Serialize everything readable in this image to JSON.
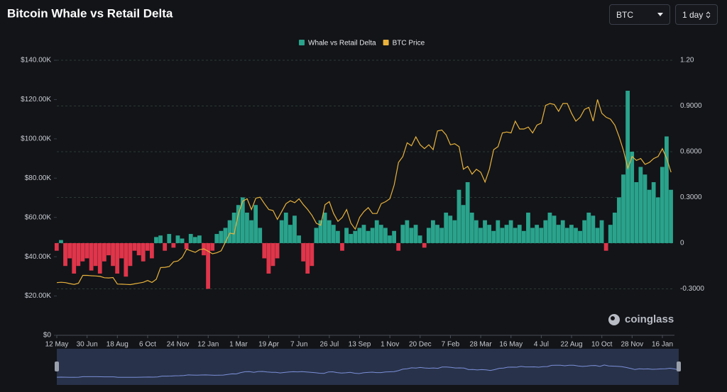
{
  "controls": {
    "symbol": "BTC",
    "interval": "1 day"
  },
  "watermark": "coinglass",
  "chart_data": {
    "type": "bar-line",
    "title": "Bitcoin Whale vs Retail Delta",
    "categories": [
      "12 May",
      null,
      null,
      null,
      null,
      null,
      null,
      "30 Jun",
      null,
      null,
      null,
      null,
      null,
      null,
      "18 Aug",
      null,
      null,
      null,
      null,
      null,
      null,
      "6 Oct",
      null,
      null,
      null,
      null,
      null,
      null,
      "24 Nov",
      null,
      null,
      null,
      null,
      null,
      null,
      "12 Jan",
      null,
      null,
      null,
      null,
      null,
      null,
      "1 Mar",
      null,
      null,
      null,
      null,
      null,
      null,
      "19 Apr",
      null,
      null,
      null,
      null,
      null,
      null,
      "7 Jun",
      null,
      null,
      null,
      null,
      null,
      null,
      "26 Jul",
      null,
      null,
      null,
      null,
      null,
      null,
      "13 Sep",
      null,
      null,
      null,
      null,
      null,
      null,
      "1 Nov",
      null,
      null,
      null,
      null,
      null,
      null,
      "20 Dec",
      null,
      null,
      null,
      null,
      null,
      null,
      "7 Feb",
      null,
      null,
      null,
      null,
      null,
      null,
      "28 Mar",
      null,
      null,
      null,
      null,
      null,
      null,
      "16 May",
      null,
      null,
      null,
      null,
      null,
      null,
      "4 Jul",
      null,
      null,
      null,
      null,
      null,
      null,
      "22 Aug",
      null,
      null,
      null,
      null,
      null,
      null,
      "10 Oct",
      null,
      null,
      null,
      null,
      null,
      null,
      "28 Nov",
      null,
      null,
      null,
      null,
      null,
      null,
      "16 Jan",
      null,
      null
    ],
    "series": [
      {
        "name": "Whale vs Retail Delta",
        "kind": "bar",
        "axis": "y2",
        "color": "#2aa38c",
        "negative_color": "#e0354a",
        "values": [
          -0.05,
          0.02,
          -0.15,
          -0.1,
          -0.2,
          -0.15,
          -0.12,
          -0.1,
          -0.18,
          -0.15,
          -0.2,
          -0.12,
          -0.08,
          -0.15,
          -0.2,
          -0.1,
          -0.22,
          -0.15,
          -0.05,
          -0.08,
          -0.12,
          -0.05,
          -0.1,
          0.04,
          0.05,
          -0.05,
          0.06,
          -0.03,
          0.05,
          0.03,
          -0.04,
          0.06,
          0.04,
          0.05,
          -0.08,
          -0.3,
          -0.05,
          0.06,
          0.08,
          0.1,
          0.15,
          0.2,
          0.25,
          0.3,
          0.2,
          0.15,
          0.25,
          0.1,
          -0.1,
          -0.2,
          -0.15,
          -0.1,
          0.15,
          0.2,
          0.12,
          0.18,
          0.05,
          -0.12,
          -0.2,
          -0.15,
          0.1,
          0.15,
          0.2,
          0.15,
          0.12,
          0.08,
          -0.05,
          0.1,
          0.06,
          0.08,
          0.1,
          0.12,
          0.08,
          0.1,
          0.15,
          0.12,
          0.1,
          0.05,
          0.08,
          -0.05,
          0.12,
          0.15,
          0.1,
          0.12,
          0.05,
          -0.03,
          0.1,
          0.15,
          0.12,
          0.1,
          0.2,
          0.18,
          0.15,
          0.35,
          0.25,
          0.4,
          0.2,
          0.15,
          0.1,
          0.15,
          0.12,
          0.08,
          0.15,
          0.1,
          0.12,
          0.15,
          0.1,
          0.12,
          0.08,
          0.2,
          0.1,
          0.12,
          0.1,
          0.15,
          0.2,
          0.18,
          0.12,
          0.15,
          0.1,
          0.12,
          0.1,
          0.08,
          0.15,
          0.2,
          0.18,
          0.1,
          0.15,
          -0.05,
          0.12,
          0.2,
          0.3,
          0.45,
          1.0,
          0.6,
          0.4,
          0.5,
          0.45,
          0.35,
          0.4,
          0.3,
          0.5,
          0.7,
          0.35
        ]
      },
      {
        "name": "BTC Price",
        "kind": "line",
        "axis": "y",
        "color": "#e9b23c",
        "values": [
          26800,
          27000,
          26800,
          26300,
          25900,
          26500,
          30500,
          30500,
          30300,
          30200,
          30000,
          29300,
          29200,
          29400,
          26100,
          26000,
          25900,
          25800,
          26200,
          26600,
          27000,
          27900,
          26900,
          28500,
          34500,
          34600,
          35000,
          37400,
          37800,
          39700,
          43800,
          43000,
          42200,
          43600,
          44000,
          42800,
          41500,
          42000,
          43000,
          47500,
          52000,
          51600,
          62000,
          68300,
          69500,
          64000,
          69800,
          70300,
          67000,
          64000,
          63500,
          59000,
          63000,
          67000,
          68500,
          67500,
          69500,
          66500,
          64000,
          61000,
          57000,
          56000,
          66500,
          68000,
          62000,
          58000,
          60000,
          64000,
          57000,
          54000,
          60000,
          63000,
          65000,
          62000,
          62000,
          67000,
          68000,
          69500,
          76500,
          88000,
          91000,
          98000,
          96500,
          101000,
          97000,
          95000,
          97000,
          94500,
          104000,
          104500,
          102000,
          97000,
          97500,
          96000,
          84500,
          86000,
          82000,
          84500,
          83000,
          78000,
          84500,
          94500,
          96000,
          103000,
          103500,
          103000,
          109000,
          105000,
          105000,
          106000,
          103000,
          107000,
          108000,
          117000,
          118000,
          117500,
          114000,
          118000,
          118000,
          113000,
          109000,
          111000,
          115000,
          116000,
          109000,
          120000,
          113000,
          111000,
          110000,
          107000,
          101000,
          94000,
          85000,
          91000,
          89000,
          90000,
          87000,
          88000,
          90000,
          91000,
          95000,
          90000,
          83000
        ]
      }
    ],
    "ylim": [
      0,
      140000
    ],
    "yticks": [
      {
        "value": 0,
        "label": "$0"
      },
      {
        "value": 20000,
        "label": "$20.00K"
      },
      {
        "value": 40000,
        "label": "$40.00K"
      },
      {
        "value": 60000,
        "label": "$60.00K"
      },
      {
        "value": 80000,
        "label": "$80.00K"
      },
      {
        "value": 100000,
        "label": "$100.00K"
      },
      {
        "value": 120000,
        "label": "$120.00K"
      },
      {
        "value": 140000,
        "label": "$140.00K"
      }
    ],
    "y2lim": [
      -0.605,
      1.2
    ],
    "y2ticks": [
      {
        "value": -0.3,
        "label": "-0.3000"
      },
      0,
      {
        "value": 0.3,
        "label": "0.3000"
      },
      {
        "value": 0.6,
        "label": "0.6000"
      },
      {
        "value": 0.9,
        "label": "0.9000"
      },
      {
        "value": 1.2,
        "label": "1.20"
      }
    ],
    "grid": true,
    "legend": "top"
  }
}
